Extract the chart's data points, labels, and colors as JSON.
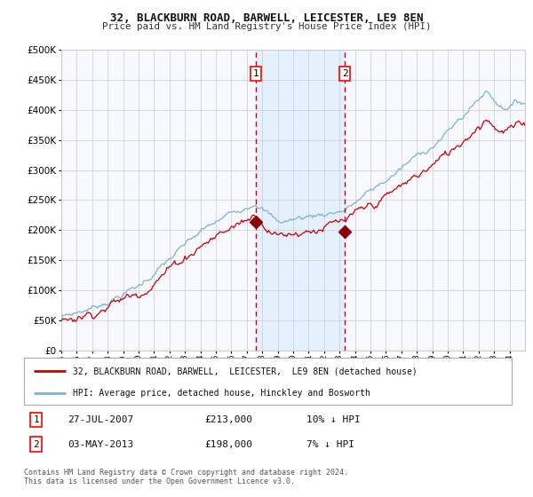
{
  "title1": "32, BLACKBURN ROAD, BARWELL, LEICESTER, LE9 8EN",
  "title2": "Price paid vs. HM Land Registry's House Price Index (HPI)",
  "legend_line1": "32, BLACKBURN ROAD, BARWELL,  LEICESTER,  LE9 8EN (detached house)",
  "legend_line2": "HPI: Average price, detached house, Hinckley and Bosworth",
  "table_row1_num": "1",
  "table_row1_date": "27-JUL-2007",
  "table_row1_price": "£213,000",
  "table_row1_pct": "10% ↓ HPI",
  "table_row2_num": "2",
  "table_row2_date": "03-MAY-2013",
  "table_row2_price": "£198,000",
  "table_row2_pct": "7% ↓ HPI",
  "footer": "Contains HM Land Registry data © Crown copyright and database right 2024.\nThis data is licensed under the Open Government Licence v3.0.",
  "hpi_color": "#7ab3d4",
  "price_color": "#cc0000",
  "marker_color": "#8b0000",
  "vline_color": "#cc0000",
  "shade_color": "#ddeeff",
  "grid_color": "#cccccc",
  "bg_color": "#ffffff",
  "plot_bg_color": "#f8f8ff",
  "ylim": [
    0,
    500000
  ],
  "yticks": [
    0,
    50000,
    100000,
    150000,
    200000,
    250000,
    300000,
    350000,
    400000,
    450000,
    500000
  ],
  "year_start": 1995,
  "year_end": 2025,
  "sale1_year": 2007.57,
  "sale2_year": 2013.34,
  "sale1_price": 213000,
  "sale2_price": 198000
}
